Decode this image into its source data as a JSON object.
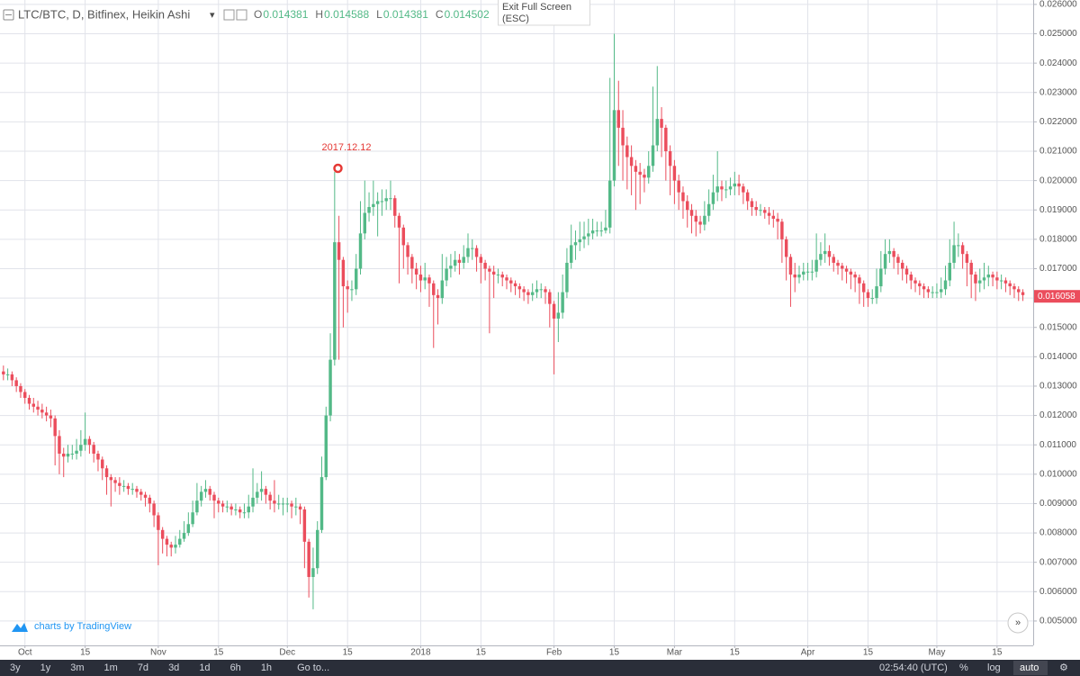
{
  "chart_data": {
    "type": "candlestick",
    "title": "LTC/BTC, D, Bitfinex, Heikin Ashi",
    "ohlc_legend": [
      {
        "key": "O",
        "value": "0.014381"
      },
      {
        "key": "H",
        "value": "0.014588"
      },
      {
        "key": "L",
        "value": "0.014381"
      },
      {
        "key": "C",
        "value": "0.014502"
      }
    ],
    "annotation": "2017.12.12",
    "up_color": "#53b987",
    "down_color": "#eb4d5c",
    "grid": true,
    "log_scale": false,
    "xlim": [
      -0.8,
      239.4
    ],
    "xticks": [
      {
        "value": 5,
        "label": "Oct"
      },
      {
        "value": 19,
        "label": "15"
      },
      {
        "value": 36,
        "label": "Nov"
      },
      {
        "value": 50,
        "label": "15"
      },
      {
        "value": 66,
        "label": "Dec"
      },
      {
        "value": 80,
        "label": "15"
      },
      {
        "value": 97,
        "label": "2018"
      },
      {
        "value": 111,
        "label": "15"
      },
      {
        "value": 128,
        "label": "Feb"
      },
      {
        "value": 142,
        "label": "15"
      },
      {
        "value": 156,
        "label": "Mar"
      },
      {
        "value": 170,
        "label": "15"
      },
      {
        "value": 187,
        "label": "Apr"
      },
      {
        "value": 201,
        "label": "15"
      },
      {
        "value": 217,
        "label": "May"
      },
      {
        "value": 231,
        "label": "15"
      }
    ],
    "ylim": [
      0.00417,
      0.02615
    ],
    "yticks": [
      {
        "value": 0.005,
        "label": "0.005000"
      },
      {
        "value": 0.006,
        "label": "0.006000"
      },
      {
        "value": 0.007,
        "label": "0.007000"
      },
      {
        "value": 0.008,
        "label": "0.008000"
      },
      {
        "value": 0.009,
        "label": "0.009000"
      },
      {
        "value": 0.01,
        "label": "0.010000"
      },
      {
        "value": 0.011,
        "label": "0.011000"
      },
      {
        "value": 0.012,
        "label": "0.012000"
      },
      {
        "value": 0.013,
        "label": "0.013000"
      },
      {
        "value": 0.014,
        "label": "0.014000"
      },
      {
        "value": 0.015,
        "label": "0.015000"
      },
      {
        "value": 0.016,
        "label": "0.016000"
      },
      {
        "value": 0.017,
        "label": "0.017000"
      },
      {
        "value": 0.018,
        "label": "0.018000"
      },
      {
        "value": 0.019,
        "label": "0.019000"
      },
      {
        "value": 0.02,
        "label": "0.020000"
      },
      {
        "value": 0.021,
        "label": "0.021000"
      },
      {
        "value": 0.022,
        "label": "0.022000"
      },
      {
        "value": 0.023,
        "label": "0.023000"
      },
      {
        "value": 0.024,
        "label": "0.024000"
      },
      {
        "value": 0.025,
        "label": "0.025000"
      },
      {
        "value": 0.026,
        "label": "0.026000"
      }
    ],
    "last_price": {
      "value": 0.016058,
      "label": "0.016058"
    },
    "open": [
      0.0135,
      0.0134,
      0.0134,
      0.0132,
      0.013,
      0.0128,
      0.0126,
      0.0124,
      0.0123,
      0.0122,
      0.0121,
      0.012,
      0.0119,
      0.0113,
      0.0107,
      0.0106,
      0.0107,
      0.0107,
      0.0108,
      0.011,
      0.0112,
      0.011,
      0.0107,
      0.0105,
      0.0102,
      0.0099,
      0.0098,
      0.0097,
      0.0096,
      0.0096,
      0.0095,
      0.0095,
      0.0094,
      0.0093,
      0.0092,
      0.009,
      0.0086,
      0.0081,
      0.0078,
      0.0076,
      0.0075,
      0.0076,
      0.0078,
      0.008,
      0.0083,
      0.0087,
      0.0091,
      0.0094,
      0.0095,
      0.0093,
      0.0091,
      0.009,
      0.0089,
      0.0089,
      0.0088,
      0.0088,
      0.0087,
      0.0087,
      0.0089,
      0.0092,
      0.0094,
      0.0095,
      0.0093,
      0.0091,
      0.009,
      0.009,
      0.009,
      0.009,
      0.0089,
      0.0089,
      0.0088,
      0.0077,
      0.0065,
      0.0068,
      0.0081,
      0.0099,
      0.012,
      0.0139,
      0.0179,
      0.0173,
      0.0164,
      0.0163,
      0.0163,
      0.017,
      0.0182,
      0.0189,
      0.0191,
      0.0192,
      0.0193,
      0.0193,
      0.0194,
      0.0194,
      0.0188,
      0.0184,
      0.0178,
      0.0174,
      0.017,
      0.0168,
      0.0166,
      0.0167,
      0.0165,
      0.0161,
      0.016,
      0.0166,
      0.017,
      0.0171,
      0.0173,
      0.0172,
      0.0174,
      0.0177,
      0.0177,
      0.0174,
      0.0172,
      0.017,
      0.0169,
      0.0168,
      0.0168,
      0.0167,
      0.0166,
      0.0165,
      0.0164,
      0.0163,
      0.0162,
      0.0161,
      0.0162,
      0.0163,
      0.0163,
      0.0162,
      0.0158,
      0.0153,
      0.0155,
      0.0162,
      0.0172,
      0.0178,
      0.0179,
      0.018,
      0.0181,
      0.0182,
      0.0183,
      0.0183,
      0.0183,
      0.0184,
      0.02,
      0.0224,
      0.0218,
      0.0212,
      0.0208,
      0.0205,
      0.0203,
      0.0202,
      0.0201,
      0.0205,
      0.0212,
      0.0221,
      0.0218,
      0.021,
      0.0205,
      0.02,
      0.0196,
      0.0193,
      0.019,
      0.0188,
      0.0186,
      0.0185,
      0.0188,
      0.0192,
      0.0196,
      0.0198,
      0.0197,
      0.0197,
      0.0198,
      0.0199,
      0.0198,
      0.0196,
      0.0193,
      0.0191,
      0.019,
      0.019,
      0.0189,
      0.0188,
      0.0187,
      0.0186,
      0.018,
      0.0174,
      0.0168,
      0.0167,
      0.0168,
      0.0169,
      0.0169,
      0.0169,
      0.0173,
      0.0175,
      0.0176,
      0.0174,
      0.0172,
      0.0171,
      0.017,
      0.0169,
      0.0168,
      0.0167,
      0.0165,
      0.0162,
      0.016,
      0.016,
      0.0164,
      0.017,
      0.0175,
      0.0176,
      0.0174,
      0.0172,
      0.017,
      0.0168,
      0.0166,
      0.0165,
      0.0164,
      0.0163,
      0.0162,
      0.0162,
      0.0162,
      0.0163,
      0.0166,
      0.0172,
      0.0178,
      0.0178,
      0.0175,
      0.0172,
      0.0168,
      0.0165,
      0.0166,
      0.0167,
      0.0168,
      0.0167,
      0.0166,
      0.0166,
      0.0165,
      0.0164,
      0.0163,
      0.0162
    ],
    "high": [
      0.0137,
      0.0136,
      0.0135,
      0.0133,
      0.0131,
      0.0129,
      0.0127,
      0.0126,
      0.0125,
      0.0124,
      0.0123,
      0.0122,
      0.012,
      0.0115,
      0.0109,
      0.011,
      0.011,
      0.0112,
      0.0115,
      0.0121,
      0.0113,
      0.0111,
      0.0108,
      0.0106,
      0.0103,
      0.01,
      0.0099,
      0.0099,
      0.0098,
      0.0097,
      0.0097,
      0.0096,
      0.0095,
      0.0094,
      0.0093,
      0.0091,
      0.0087,
      0.0082,
      0.0079,
      0.0077,
      0.0079,
      0.0081,
      0.0084,
      0.0087,
      0.0091,
      0.0097,
      0.0096,
      0.0098,
      0.0096,
      0.0094,
      0.0092,
      0.0091,
      0.0091,
      0.009,
      0.009,
      0.0089,
      0.009,
      0.0093,
      0.0102,
      0.0097,
      0.0101,
      0.0096,
      0.0094,
      0.0098,
      0.0093,
      0.0092,
      0.0092,
      0.0091,
      0.0092,
      0.009,
      0.0089,
      0.0078,
      0.0075,
      0.0084,
      0.0106,
      0.0123,
      0.0148,
      0.0203,
      0.0188,
      0.0174,
      0.0166,
      0.0166,
      0.0175,
      0.0193,
      0.02,
      0.0196,
      0.02,
      0.0196,
      0.0197,
      0.0197,
      0.02,
      0.0195,
      0.0189,
      0.0185,
      0.0179,
      0.0175,
      0.0172,
      0.0171,
      0.0172,
      0.0168,
      0.0166,
      0.0163,
      0.0175,
      0.0174,
      0.0175,
      0.0176,
      0.0175,
      0.0178,
      0.0182,
      0.018,
      0.0178,
      0.0175,
      0.0173,
      0.0171,
      0.0171,
      0.017,
      0.0169,
      0.0168,
      0.0167,
      0.0166,
      0.0165,
      0.0164,
      0.0163,
      0.0165,
      0.0166,
      0.0165,
      0.0164,
      0.0163,
      0.0159,
      0.0162,
      0.0168,
      0.0177,
      0.0185,
      0.0183,
      0.0186,
      0.0186,
      0.0187,
      0.0187,
      0.0186,
      0.0186,
      0.019,
      0.0235,
      0.025,
      0.0234,
      0.0224,
      0.0215,
      0.0212,
      0.0207,
      0.0206,
      0.0204,
      0.021,
      0.0232,
      0.0239,
      0.0225,
      0.0219,
      0.0212,
      0.0207,
      0.0202,
      0.0198,
      0.0195,
      0.0192,
      0.019,
      0.0188,
      0.0193,
      0.0197,
      0.0202,
      0.021,
      0.02,
      0.02,
      0.0201,
      0.0203,
      0.0202,
      0.0199,
      0.0197,
      0.0194,
      0.0193,
      0.0192,
      0.0191,
      0.0191,
      0.019,
      0.0189,
      0.0187,
      0.0181,
      0.0175,
      0.0172,
      0.0171,
      0.0172,
      0.0172,
      0.0173,
      0.0182,
      0.0179,
      0.0182,
      0.0178,
      0.0175,
      0.0173,
      0.0172,
      0.0171,
      0.017,
      0.0169,
      0.0168,
      0.0166,
      0.0163,
      0.0163,
      0.017,
      0.0176,
      0.018,
      0.018,
      0.0177,
      0.0175,
      0.0173,
      0.0171,
      0.0169,
      0.0167,
      0.0166,
      0.0165,
      0.0164,
      0.0164,
      0.0165,
      0.0167,
      0.0171,
      0.018,
      0.0186,
      0.0182,
      0.0179,
      0.0176,
      0.0173,
      0.0169,
      0.017,
      0.0172,
      0.0171,
      0.0169,
      0.0169,
      0.0168,
      0.0167,
      0.0166,
      0.0165,
      0.0164,
      0.0163
    ],
    "low": [
      0.0132,
      0.0132,
      0.013,
      0.0128,
      0.0126,
      0.0124,
      0.0122,
      0.0121,
      0.012,
      0.0119,
      0.0118,
      0.0116,
      0.0103,
      0.01,
      0.0099,
      0.0104,
      0.0105,
      0.0105,
      0.0106,
      0.0108,
      0.0107,
      0.0104,
      0.0101,
      0.0098,
      0.0093,
      0.0089,
      0.0094,
      0.0093,
      0.0094,
      0.0093,
      0.0093,
      0.0092,
      0.0091,
      0.0089,
      0.0087,
      0.0082,
      0.0069,
      0.0073,
      0.0072,
      0.0072,
      0.0073,
      0.0075,
      0.0077,
      0.0079,
      0.0082,
      0.0086,
      0.0089,
      0.0092,
      0.0091,
      0.0085,
      0.0087,
      0.0087,
      0.0087,
      0.0086,
      0.0086,
      0.0085,
      0.0085,
      0.0085,
      0.0087,
      0.009,
      0.0091,
      0.009,
      0.0088,
      0.0087,
      0.0088,
      0.0086,
      0.0087,
      0.0085,
      0.0086,
      0.0083,
      0.0068,
      0.0058,
      0.0054,
      0.0066,
      0.008,
      0.0098,
      0.0118,
      0.0137,
      0.0139,
      0.015,
      0.0155,
      0.0159,
      0.0161,
      0.0168,
      0.018,
      0.0186,
      0.0188,
      0.0181,
      0.0188,
      0.019,
      0.019,
      0.0184,
      0.0165,
      0.017,
      0.0168,
      0.0165,
      0.0163,
      0.0162,
      0.0163,
      0.0157,
      0.0143,
      0.0151,
      0.0158,
      0.0164,
      0.0167,
      0.0169,
      0.0168,
      0.017,
      0.0172,
      0.0173,
      0.0169,
      0.0165,
      0.0166,
      0.0148,
      0.016,
      0.0165,
      0.0164,
      0.0163,
      0.0162,
      0.0161,
      0.016,
      0.0159,
      0.0158,
      0.0159,
      0.016,
      0.016,
      0.0158,
      0.015,
      0.0134,
      0.0145,
      0.0153,
      0.016,
      0.017,
      0.0173,
      0.0176,
      0.0177,
      0.0178,
      0.018,
      0.0181,
      0.0181,
      0.0182,
      0.0182,
      0.0198,
      0.0205,
      0.02,
      0.0197,
      0.0195,
      0.019,
      0.0192,
      0.0196,
      0.0199,
      0.0203,
      0.021,
      0.0208,
      0.02,
      0.0195,
      0.0192,
      0.019,
      0.0187,
      0.0184,
      0.0182,
      0.0181,
      0.0182,
      0.0183,
      0.0186,
      0.019,
      0.0193,
      0.0193,
      0.0194,
      0.0195,
      0.0195,
      0.0195,
      0.0192,
      0.019,
      0.0188,
      0.0188,
      0.0188,
      0.0187,
      0.0185,
      0.0184,
      0.018,
      0.0172,
      0.0166,
      0.0157,
      0.0162,
      0.0165,
      0.0166,
      0.0166,
      0.0166,
      0.0167,
      0.0171,
      0.0172,
      0.0171,
      0.0169,
      0.0168,
      0.0166,
      0.0165,
      0.0163,
      0.0162,
      0.0158,
      0.0157,
      0.0157,
      0.0158,
      0.0158,
      0.0162,
      0.0168,
      0.0172,
      0.017,
      0.0168,
      0.0166,
      0.0165,
      0.0163,
      0.0162,
      0.0161,
      0.016,
      0.016,
      0.016,
      0.016,
      0.016,
      0.0161,
      0.0164,
      0.017,
      0.0174,
      0.017,
      0.0164,
      0.016,
      0.0159,
      0.0162,
      0.0163,
      0.0164,
      0.0164,
      0.0163,
      0.0163,
      0.0162,
      0.0161,
      0.016,
      0.0159,
      0.0159
    ],
    "close": [
      0.0134,
      0.0134,
      0.0132,
      0.013,
      0.0128,
      0.0126,
      0.0124,
      0.0123,
      0.0122,
      0.0121,
      0.012,
      0.0119,
      0.0113,
      0.0107,
      0.0106,
      0.0107,
      0.0107,
      0.0108,
      0.011,
      0.0112,
      0.011,
      0.0107,
      0.0105,
      0.0102,
      0.0099,
      0.0098,
      0.0097,
      0.0096,
      0.0096,
      0.0095,
      0.0095,
      0.0094,
      0.0093,
      0.0092,
      0.009,
      0.0086,
      0.0081,
      0.0078,
      0.0076,
      0.0075,
      0.0076,
      0.0078,
      0.008,
      0.0083,
      0.0087,
      0.0091,
      0.0094,
      0.0095,
      0.0093,
      0.0091,
      0.009,
      0.0089,
      0.0089,
      0.0088,
      0.0088,
      0.0087,
      0.0087,
      0.0089,
      0.0092,
      0.0094,
      0.0095,
      0.0093,
      0.0091,
      0.009,
      0.009,
      0.009,
      0.009,
      0.0089,
      0.0089,
      0.0088,
      0.0077,
      0.0065,
      0.0068,
      0.0081,
      0.0099,
      0.012,
      0.0139,
      0.0179,
      0.0173,
      0.0164,
      0.0163,
      0.0163,
      0.017,
      0.0182,
      0.0189,
      0.0191,
      0.0192,
      0.0193,
      0.0193,
      0.0194,
      0.0194,
      0.0188,
      0.0184,
      0.0178,
      0.0174,
      0.017,
      0.0168,
      0.0166,
      0.0167,
      0.0165,
      0.0161,
      0.016,
      0.0166,
      0.017,
      0.0171,
      0.0173,
      0.0172,
      0.0174,
      0.0177,
      0.0177,
      0.0174,
      0.0172,
      0.017,
      0.0169,
      0.0168,
      0.0168,
      0.0167,
      0.0166,
      0.0165,
      0.0164,
      0.0163,
      0.0162,
      0.0161,
      0.0162,
      0.0163,
      0.0163,
      0.0162,
      0.0158,
      0.0153,
      0.0155,
      0.0162,
      0.0172,
      0.0178,
      0.0179,
      0.018,
      0.0181,
      0.0182,
      0.0183,
      0.0183,
      0.0183,
      0.0184,
      0.02,
      0.0224,
      0.0218,
      0.0212,
      0.0208,
      0.0205,
      0.0203,
      0.0202,
      0.0201,
      0.0205,
      0.0212,
      0.0221,
      0.0218,
      0.021,
      0.0205,
      0.02,
      0.0196,
      0.0193,
      0.019,
      0.0188,
      0.0186,
      0.0185,
      0.0188,
      0.0192,
      0.0196,
      0.0198,
      0.0197,
      0.0197,
      0.0198,
      0.0199,
      0.0198,
      0.0196,
      0.0193,
      0.0191,
      0.019,
      0.019,
      0.0189,
      0.0188,
      0.0187,
      0.0186,
      0.018,
      0.0174,
      0.0168,
      0.0167,
      0.0168,
      0.0169,
      0.0169,
      0.0169,
      0.0173,
      0.0175,
      0.0176,
      0.0174,
      0.0172,
      0.0171,
      0.017,
      0.0169,
      0.0168,
      0.0167,
      0.0165,
      0.0162,
      0.016,
      0.016,
      0.0164,
      0.017,
      0.0175,
      0.0176,
      0.0174,
      0.0172,
      0.017,
      0.0168,
      0.0166,
      0.0165,
      0.0164,
      0.0163,
      0.0162,
      0.0162,
      0.0162,
      0.0163,
      0.0166,
      0.0172,
      0.0178,
      0.0178,
      0.0175,
      0.0172,
      0.0168,
      0.0165,
      0.0166,
      0.0167,
      0.0168,
      0.0167,
      0.0166,
      0.0166,
      0.0165,
      0.0164,
      0.0163,
      0.0162,
      0.0161
    ]
  },
  "ui": {
    "exit_full_screen": "Exit Full Screen",
    "exit_hint": "(ESC)",
    "branding": "charts by TradingView",
    "ranges": [
      "3y",
      "1y",
      "3m",
      "1m",
      "7d",
      "3d",
      "1d",
      "6h",
      "1h"
    ],
    "goto": "Go to...",
    "clock": "02:54:40 (UTC)",
    "percent": "%",
    "log": "log",
    "auto": "auto"
  }
}
